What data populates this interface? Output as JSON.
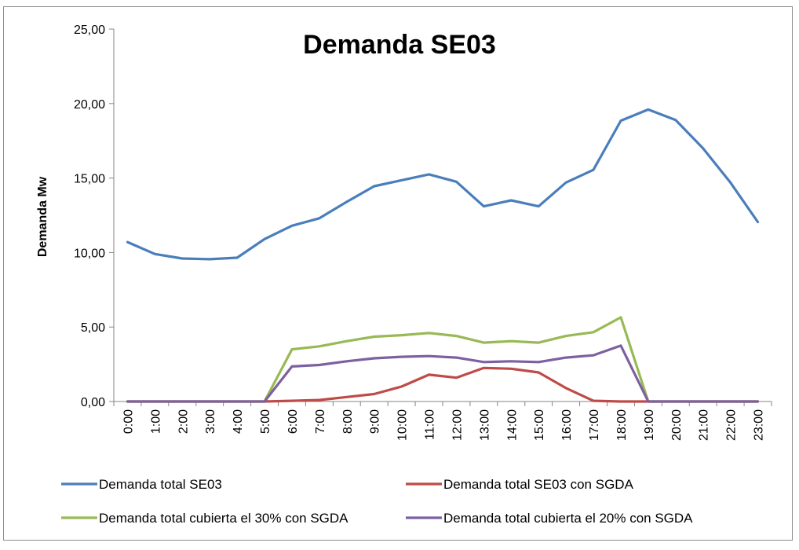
{
  "chart_data": {
    "type": "line",
    "title": "Demanda SE03",
    "xlabel": "",
    "ylabel": "Demanda Mw",
    "ylim": [
      0,
      25
    ],
    "yticks": [
      "0,00",
      "5,00",
      "10,00",
      "15,00",
      "20,00",
      "25,00"
    ],
    "ytick_values": [
      0,
      5,
      10,
      15,
      20,
      25
    ],
    "grid": false,
    "legend_position": "bottom",
    "categories": [
      "0:00",
      "1:00",
      "2:00",
      "3:00",
      "4:00",
      "5:00",
      "6:00",
      "7:00",
      "8:00",
      "9:00",
      "10:00",
      "11:00",
      "12:00",
      "13:00",
      "14:00",
      "15:00",
      "16:00",
      "17:00",
      "18:00",
      "19:00",
      "20:00",
      "21:00",
      "22:00",
      "23:00"
    ],
    "series": [
      {
        "name": "Demanda total SE03",
        "color": "#4a7ebb",
        "values": [
          10.7,
          9.9,
          9.6,
          9.55,
          9.65,
          10.9,
          11.8,
          12.3,
          13.4,
          14.45,
          14.85,
          15.25,
          14.75,
          13.1,
          13.5,
          13.1,
          14.7,
          15.55,
          18.85,
          19.6,
          18.9,
          17.0,
          14.7,
          12.05
        ]
      },
      {
        "name": "Demanda total SE03 con SGDA",
        "color": "#be4b48",
        "values": [
          0,
          0,
          0,
          0,
          0,
          0,
          0.05,
          0.1,
          0.3,
          0.5,
          1.0,
          1.8,
          1.6,
          2.25,
          2.2,
          1.95,
          0.9,
          0.05,
          0,
          0,
          0,
          0,
          0,
          0
        ]
      },
      {
        "name": "Demanda total cubierta  el 30% con SGDA",
        "color": "#98b954",
        "values": [
          0,
          0,
          0,
          0,
          0,
          0,
          3.5,
          3.7,
          4.05,
          4.35,
          4.45,
          4.6,
          4.4,
          3.95,
          4.05,
          3.95,
          4.4,
          4.65,
          5.65,
          0,
          0,
          0,
          0,
          0
        ]
      },
      {
        "name": "Demanda total cubierta  el 20% con SGDA",
        "color": "#7d60a0",
        "values": [
          0,
          0,
          0,
          0,
          0,
          0,
          2.35,
          2.45,
          2.7,
          2.9,
          3.0,
          3.05,
          2.95,
          2.65,
          2.7,
          2.65,
          2.95,
          3.1,
          3.75,
          0,
          0,
          0,
          0,
          0
        ]
      }
    ]
  }
}
